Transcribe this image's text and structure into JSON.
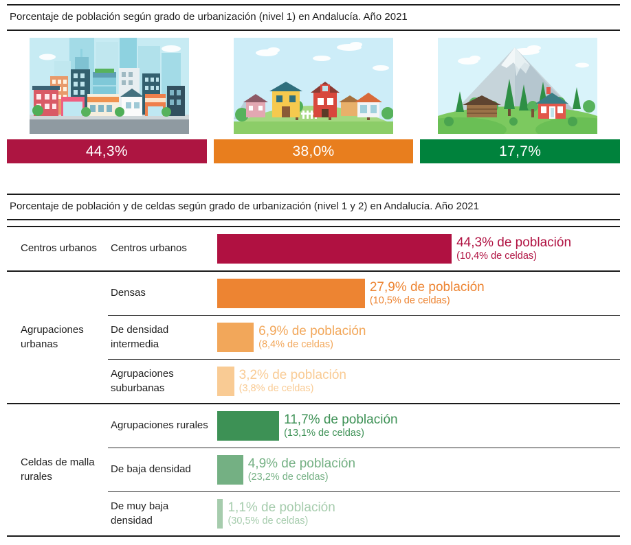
{
  "section1": {
    "title": "Porcentaje de población según grado de urbanización (nivel 1) en Andalucía. Año 2021",
    "items": [
      {
        "name": "centros-urbanos",
        "illustration": "city-illustration",
        "value": "44,3%",
        "color": "#AD1541"
      },
      {
        "name": "agrupaciones-urbanas",
        "illustration": "village-illustration",
        "value": "38,0%",
        "color": "#E87E1E"
      },
      {
        "name": "celdas-de-malla-rurales",
        "illustration": "rural-illustration",
        "value": "17,7%",
        "color": "#00823C"
      }
    ]
  },
  "section2": {
    "title": "Porcentaje de población y de celdas según grado de urbanización (nivel 1 y 2) en Andalucía. Año 2021",
    "groups": [
      {
        "label": "Centros urbanos",
        "rows": [
          {
            "label": "Centros urbanos",
            "population_pct": 44.3,
            "cells_pct": 10.4,
            "population_label": "44,3% de población",
            "cells_label": "(10,4% de celdas)",
            "color": "#B01141"
          }
        ]
      },
      {
        "label": "Agrupaciones urbanas",
        "rows": [
          {
            "label": "Densas",
            "population_pct": 27.9,
            "cells_pct": 10.5,
            "population_label": "27,9% de población",
            "cells_label": "(10,5% de celdas)",
            "color": "#ED8432"
          },
          {
            "label": "De densidad intermedia",
            "population_pct": 6.9,
            "cells_pct": 8.4,
            "population_label": "6,9% de población",
            "cells_label": "(8,4% de celdas)",
            "color": "#F2A75A"
          },
          {
            "label": "Agrupaciones suburbanas",
            "population_pct": 3.2,
            "cells_pct": 3.8,
            "population_label": "3,2% de población",
            "cells_label": "(3,8% de celdas)",
            "color": "#F9CB94"
          }
        ]
      },
      {
        "label": "Celdas de malla rurales",
        "rows": [
          {
            "label": "Agrupaciones rurales",
            "population_pct": 11.7,
            "cells_pct": 13.1,
            "population_label": "11,7% de población",
            "cells_label": "(13,1% de celdas)",
            "color": "#3D9155"
          },
          {
            "label": "De baja densidad",
            "population_pct": 4.9,
            "cells_pct": 23.2,
            "population_label": "4,9% de población",
            "cells_label": "(23,2% de celdas)",
            "color": "#74B083"
          },
          {
            "label": "De muy baja densidad",
            "population_pct": 1.1,
            "cells_pct": 30.5,
            "population_label": "1,1% de población",
            "cells_label": "(30,5% de celdas)",
            "color": "#A6CCAD"
          }
        ]
      }
    ]
  },
  "chart_data": [
    {
      "type": "bar",
      "title": "Porcentaje de población según grado de urbanización (nivel 1) en Andalucía. Año 2021",
      "categories": [
        "Centros urbanos",
        "Agrupaciones urbanas",
        "Celdas de malla rurales"
      ],
      "values": [
        44.3,
        38.0,
        17.7
      ],
      "xlabel": "",
      "ylabel": "% de población",
      "ylim": [
        0,
        100
      ],
      "colors": [
        "#AD1541",
        "#E87E1E",
        "#00823C"
      ],
      "grid": false,
      "legend_position": "none"
    },
    {
      "type": "bar",
      "title": "Porcentaje de población y de celdas según grado de urbanización (nivel 1 y 2) en Andalucía. Año 2021",
      "orientation": "horizontal",
      "categories": [
        "Centros urbanos",
        "Densas",
        "De densidad intermedia",
        "Agrupaciones suburbanas",
        "Agrupaciones rurales",
        "De baja densidad",
        "De muy baja densidad"
      ],
      "series": [
        {
          "name": "% de población",
          "values": [
            44.3,
            27.9,
            6.9,
            3.2,
            11.7,
            4.9,
            1.1
          ]
        },
        {
          "name": "% de celdas",
          "values": [
            10.4,
            10.5,
            8.4,
            3.8,
            13.1,
            23.2,
            30.5
          ]
        }
      ],
      "xlabel": "% de población",
      "ylabel": "",
      "xlim": [
        0,
        50
      ],
      "colors": [
        "#B01141",
        "#ED8432",
        "#F2A75A",
        "#F9CB94",
        "#3D9155",
        "#74B083",
        "#A6CCAD"
      ],
      "grid": false,
      "legend_position": "inline-labels"
    }
  ]
}
